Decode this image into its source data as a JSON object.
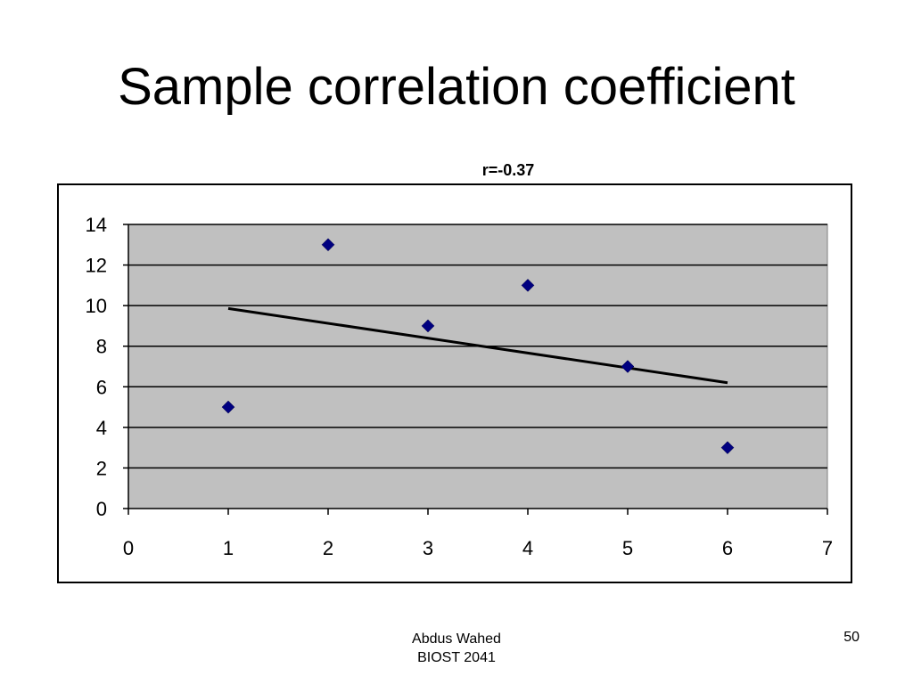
{
  "slide": {
    "title": "Sample correlation coefficient",
    "footer": {
      "author": "Abdus Wahed",
      "course": "BIOST 2041",
      "page_number": "50"
    }
  },
  "chart_data": {
    "type": "scatter",
    "title": "r=-0.37",
    "xlabel": "",
    "ylabel": "",
    "xlim": [
      0,
      7
    ],
    "ylim": [
      0,
      14
    ],
    "x_ticks": [
      "0",
      "1",
      "2",
      "3",
      "4",
      "5",
      "6",
      "7"
    ],
    "y_ticks": [
      "0",
      "2",
      "4",
      "6",
      "8",
      "10",
      "12",
      "14"
    ],
    "grid": true,
    "legend": "none",
    "points": [
      {
        "x": 1,
        "y": 5
      },
      {
        "x": 2,
        "y": 13
      },
      {
        "x": 3,
        "y": 9
      },
      {
        "x": 4,
        "y": 11
      },
      {
        "x": 5,
        "y": 7
      },
      {
        "x": 6,
        "y": 3
      }
    ],
    "trendline": {
      "type": "linear",
      "start": {
        "x": 1,
        "y": 9.86
      },
      "end": {
        "x": 6,
        "y": 6.2
      }
    },
    "colors": {
      "marker": "#000080",
      "plot_area": "#c0c0c0",
      "trendline": "#000000",
      "gridline": "#000000"
    }
  }
}
